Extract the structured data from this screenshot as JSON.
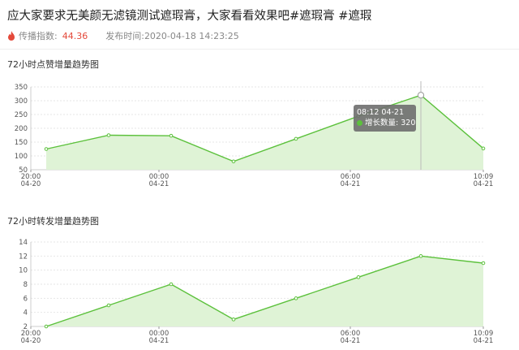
{
  "header": {
    "title": "应大家要求无美颜无滤镜测试遮瑕膏，大家看看效果吧#遮瑕膏 #遮瑕",
    "index_label": "传播指数:",
    "index_value": "44.36",
    "publish_label": "发布时间:",
    "publish_value": "2020-04-18 14:23:25"
  },
  "chart_data": [
    {
      "type": "area",
      "title": "72小时点赞增量趋势图",
      "x_ticks": [
        {
          "time": "20:00",
          "date": "04-20"
        },
        {
          "time": "00:00",
          "date": "04-21"
        },
        {
          "time": "06:00",
          "date": "04-21"
        },
        {
          "time": "10:09",
          "date": "04-21"
        }
      ],
      "y_ticks": [
        50,
        100,
        150,
        200,
        250,
        300,
        350
      ],
      "ylim": [
        50,
        350
      ],
      "values": [
        125,
        175,
        173,
        80,
        162,
        244,
        320,
        127
      ],
      "grid": true,
      "color": "#5cc13c",
      "fill": "#dff3d6",
      "tooltip": {
        "time": "08:12 04-21",
        "label": "增长数量:",
        "value": 320
      }
    },
    {
      "type": "area",
      "title": "72小时转发增量趋势图",
      "x_ticks": [
        {
          "time": "20:00",
          "date": "04-20"
        },
        {
          "time": "00:00",
          "date": "04-21"
        },
        {
          "time": "06:00",
          "date": "04-21"
        },
        {
          "time": "10:09",
          "date": "04-21"
        }
      ],
      "y_ticks": [
        2,
        4,
        6,
        8,
        10,
        12,
        14
      ],
      "ylim": [
        2,
        14
      ],
      "values": [
        2,
        5,
        8,
        3,
        6,
        9,
        12,
        11
      ],
      "grid": true,
      "color": "#5cc13c",
      "fill": "#dff3d6"
    }
  ]
}
